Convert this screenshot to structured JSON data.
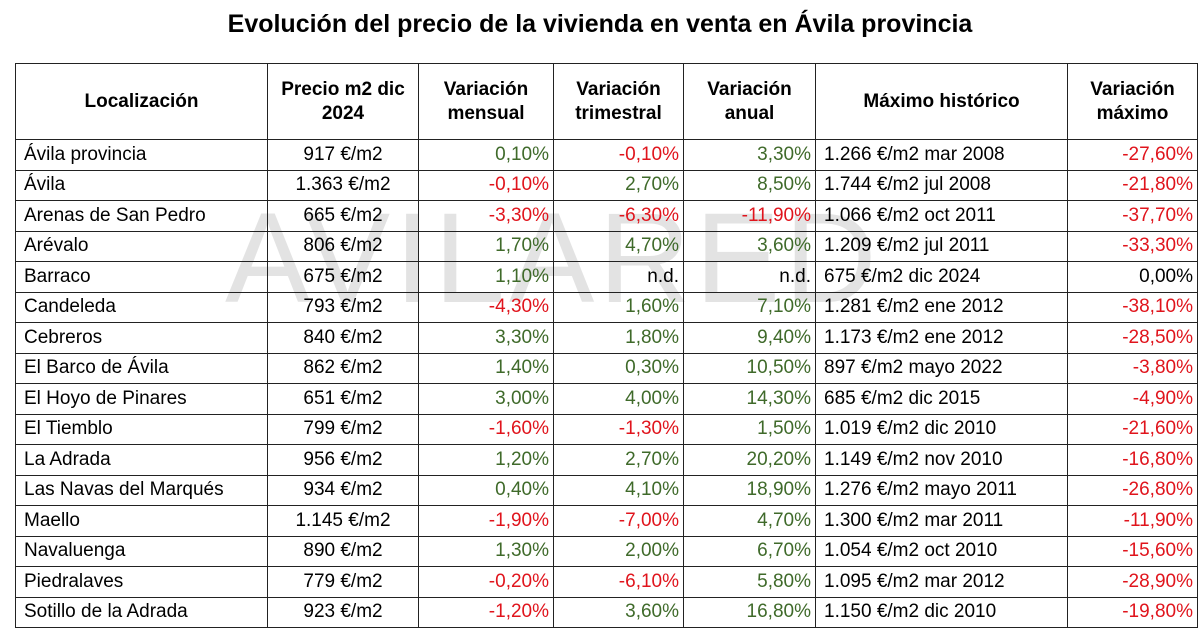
{
  "title": "Evolución del precio de la vivienda en venta en Ávila provincia",
  "watermark": "AVILARED",
  "colors": {
    "positive": "#3f6a2a",
    "negative": "#e0141c"
  },
  "headers": [
    "Localización",
    "Precio m2 dic 2024",
    "Variación mensual",
    "Variación trimestral",
    "Variación anual",
    "Máximo histórico",
    "Variación máximo"
  ],
  "rows": [
    [
      "Ávila provincia",
      "917 €/m2",
      "0,10%",
      "-0,10%",
      "3,30%",
      "1.266 €/m2 mar 2008",
      "-27,60%"
    ],
    [
      "Ávila",
      "1.363 €/m2",
      "-0,10%",
      "2,70%",
      "8,50%",
      "1.744 €/m2 jul 2008",
      "-21,80%"
    ],
    [
      "Arenas de San Pedro",
      "665 €/m2",
      "-3,30%",
      "-6,30%",
      "-11,90%",
      "1.066 €/m2 oct 2011",
      "-37,70%"
    ],
    [
      "Arévalo",
      "806 €/m2",
      "1,70%",
      "4,70%",
      "3,60%",
      "1.209 €/m2 jul 2011",
      "-33,30%"
    ],
    [
      "Barraco",
      "675 €/m2",
      "1,10%",
      "n.d.",
      "n.d.",
      "675 €/m2 dic 2024",
      "0,00%"
    ],
    [
      "Candeleda",
      "793 €/m2",
      "-4,30%",
      "1,60%",
      "7,10%",
      "1.281 €/m2 ene 2012",
      "-38,10%"
    ],
    [
      "Cebreros",
      "840 €/m2",
      "3,30%",
      "1,80%",
      "9,40%",
      "1.173 €/m2 ene 2012",
      "-28,50%"
    ],
    [
      "El Barco de Ávila",
      "862 €/m2",
      "1,40%",
      "0,30%",
      "10,50%",
      "897 €/m2 mayo 2022",
      "-3,80%"
    ],
    [
      "El Hoyo de Pinares",
      "651 €/m2",
      "3,00%",
      "4,00%",
      "14,30%",
      "685 €/m2 dic 2015",
      "-4,90%"
    ],
    [
      "El Tiemblo",
      "799 €/m2",
      "-1,60%",
      "-1,30%",
      "1,50%",
      "1.019 €/m2 dic 2010",
      "-21,60%"
    ],
    [
      "La Adrada",
      "956 €/m2",
      "1,20%",
      "2,70%",
      "20,20%",
      "1.149 €/m2 nov 2010",
      "-16,80%"
    ],
    [
      "Las Navas del Marqués",
      "934 €/m2",
      "0,40%",
      "4,10%",
      "18,90%",
      "1.276 €/m2 mayo 2011",
      "-26,80%"
    ],
    [
      "Maello",
      "1.145 €/m2",
      "-1,90%",
      "-7,00%",
      "4,70%",
      "1.300 €/m2 mar 2011",
      "-11,90%"
    ],
    [
      "Navaluenga",
      "890 €/m2",
      "1,30%",
      "2,00%",
      "6,70%",
      "1.054 €/m2 oct 2010",
      "-15,60%"
    ],
    [
      "Piedralaves",
      "779 €/m2",
      "-0,20%",
      "-6,10%",
      "5,80%",
      "1.095 €/m2 mar 2012",
      "-28,90%"
    ],
    [
      "Sotillo de la Adrada",
      "923 €/m2",
      "-1,20%",
      "3,60%",
      "16,80%",
      "1.150 €/m2 dic 2010",
      "-19,80%"
    ]
  ]
}
